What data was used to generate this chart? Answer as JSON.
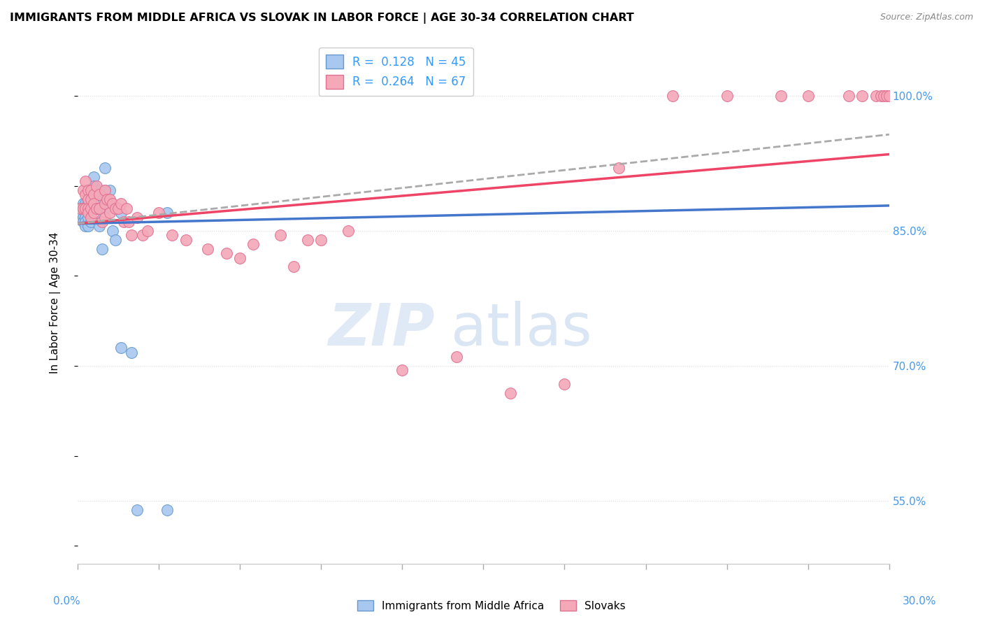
{
  "title": "IMMIGRANTS FROM MIDDLE AFRICA VS SLOVAK IN LABOR FORCE | AGE 30-34 CORRELATION CHART",
  "source": "Source: ZipAtlas.com",
  "ylabel": "In Labor Force | Age 30-34",
  "right_yticks": [
    "55.0%",
    "70.0%",
    "85.0%",
    "100.0%"
  ],
  "right_ytick_vals": [
    0.55,
    0.7,
    0.85,
    1.0
  ],
  "legend_blue_r": "0.128",
  "legend_blue_n": "45",
  "legend_pink_r": "0.264",
  "legend_pink_n": "67",
  "blue_color": "#A8C8F0",
  "pink_color": "#F4A8B8",
  "blue_edge": "#6699CC",
  "pink_edge": "#E07090",
  "trend_blue": "#4477CC",
  "trend_pink": "#EE4466",
  "trend_dashed": "#AAAAAA",
  "watermark_zip": "ZIP",
  "watermark_atlas": "atlas",
  "xlim": [
    0.0,
    0.3
  ],
  "ylim": [
    0.48,
    1.06
  ],
  "blue_scatter_x": [
    0.001,
    0.002,
    0.002,
    0.002,
    0.002,
    0.003,
    0.003,
    0.003,
    0.003,
    0.003,
    0.003,
    0.004,
    0.004,
    0.004,
    0.004,
    0.004,
    0.004,
    0.005,
    0.005,
    0.005,
    0.005,
    0.005,
    0.006,
    0.006,
    0.006,
    0.006,
    0.007,
    0.007,
    0.007,
    0.008,
    0.008,
    0.009,
    0.01,
    0.01,
    0.01,
    0.011,
    0.012,
    0.013,
    0.014,
    0.016,
    0.016,
    0.02,
    0.022,
    0.033,
    0.033
  ],
  "blue_scatter_y": [
    0.87,
    0.88,
    0.875,
    0.865,
    0.86,
    0.88,
    0.875,
    0.87,
    0.865,
    0.86,
    0.855,
    0.885,
    0.88,
    0.875,
    0.87,
    0.865,
    0.855,
    0.895,
    0.89,
    0.88,
    0.87,
    0.86,
    0.91,
    0.9,
    0.89,
    0.88,
    0.895,
    0.885,
    0.87,
    0.895,
    0.855,
    0.83,
    0.92,
    0.895,
    0.875,
    0.88,
    0.895,
    0.85,
    0.84,
    0.87,
    0.72,
    0.715,
    0.54,
    0.87,
    0.54
  ],
  "pink_scatter_x": [
    0.001,
    0.002,
    0.002,
    0.003,
    0.003,
    0.003,
    0.004,
    0.004,
    0.004,
    0.004,
    0.005,
    0.005,
    0.005,
    0.005,
    0.006,
    0.006,
    0.006,
    0.007,
    0.007,
    0.008,
    0.008,
    0.009,
    0.01,
    0.01,
    0.01,
    0.011,
    0.012,
    0.012,
    0.013,
    0.014,
    0.015,
    0.016,
    0.017,
    0.018,
    0.019,
    0.02,
    0.022,
    0.024,
    0.026,
    0.03,
    0.035,
    0.04,
    0.048,
    0.055,
    0.06,
    0.065,
    0.075,
    0.08,
    0.085,
    0.09,
    0.1,
    0.12,
    0.14,
    0.16,
    0.18,
    0.2,
    0.22,
    0.24,
    0.26,
    0.27,
    0.285,
    0.29,
    0.295,
    0.297,
    0.298,
    0.299,
    0.3
  ],
  "pink_scatter_y": [
    0.875,
    0.895,
    0.875,
    0.905,
    0.89,
    0.875,
    0.895,
    0.885,
    0.875,
    0.87,
    0.895,
    0.885,
    0.875,
    0.865,
    0.89,
    0.88,
    0.87,
    0.9,
    0.875,
    0.89,
    0.875,
    0.86,
    0.895,
    0.88,
    0.865,
    0.885,
    0.885,
    0.87,
    0.88,
    0.875,
    0.875,
    0.88,
    0.86,
    0.875,
    0.86,
    0.845,
    0.865,
    0.845,
    0.85,
    0.87,
    0.845,
    0.84,
    0.83,
    0.825,
    0.82,
    0.835,
    0.845,
    0.81,
    0.84,
    0.84,
    0.85,
    0.695,
    0.71,
    0.67,
    0.68,
    0.92,
    1.0,
    1.0,
    1.0,
    1.0,
    1.0,
    1.0,
    1.0,
    1.0,
    1.0,
    1.0,
    1.0
  ]
}
